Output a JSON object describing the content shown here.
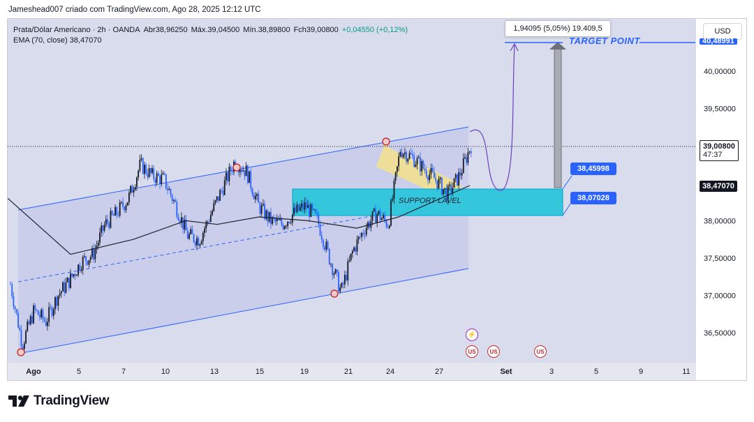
{
  "header": {
    "text": "Jameshead007 criado com TradingView.com, Ago 28, 2025 12:12 UTC"
  },
  "legend": {
    "symbol": "Prata/Dólar Americano · 2h · OANDA",
    "open": "Abr38,96250",
    "high": "Máx.39,04500",
    "low": "Mín.38,89800",
    "close": "Fch39,00800",
    "change": "+0,04550 (+0,12%)",
    "ema": "EMA (70, close)  38,47070"
  },
  "currency": "USD",
  "measure": {
    "text": "1,94095 (5,05%) 19.409,5"
  },
  "annotations": {
    "target_point": "TARGET POINT",
    "support_label": "SUPPORT LAVEL",
    "callout_upper": "38,45998",
    "callout_lower": "38,07028"
  },
  "price_tags": {
    "current": "39,00800",
    "countdown": "47:37",
    "ema": "38,47070",
    "target": "40,48991"
  },
  "events": [
    {
      "icon": "lightning-icon",
      "glyph": "⚡"
    },
    {
      "icon": "us-flag-icon",
      "glyph": "US"
    },
    {
      "icon": "us-flag-icon",
      "glyph": "US"
    },
    {
      "icon": "us-flag-icon",
      "glyph": "US"
    }
  ],
  "footer": {
    "brand": "TradingView"
  },
  "colors": {
    "up": "#089981",
    "candle": "#2962ff",
    "zone": "#00bcd4",
    "flag": "#f5e08c",
    "target": "#2962ff"
  },
  "chart_data": {
    "type": "candlestick",
    "title": "Prata/Dólar Americano · 2h · OANDA",
    "x_ticks": [
      "Ago",
      "5",
      "7",
      "10",
      "13",
      "15",
      "19",
      "21",
      "24",
      "27",
      "Set",
      "3",
      "5",
      "9",
      "11"
    ],
    "y_ticks": [
      "40,00000",
      "39,50000",
      "39,00000",
      "38,50000",
      "38,00000",
      "37,50000",
      "37,00000",
      "36,50000"
    ],
    "y_values": [
      40.0,
      39.5,
      39.0,
      38.5,
      38.0,
      37.5,
      37.0,
      36.5
    ],
    "ylim": [
      36.1,
      40.7
    ],
    "series": [
      {
        "name": "close",
        "points": [
          [
            "Ago",
            37.15
          ],
          [
            "Ago",
            36.35
          ],
          [
            "Ago",
            36.8
          ],
          [
            "Ago",
            36.65
          ],
          [
            "Ago",
            37.0
          ],
          [
            "5",
            37.2
          ],
          [
            "5",
            37.45
          ],
          [
            "5",
            37.55
          ],
          [
            "5",
            37.95
          ],
          [
            "7",
            38.1
          ],
          [
            "7",
            38.3
          ],
          [
            "7",
            38.75
          ],
          [
            "7",
            38.6
          ],
          [
            "10",
            38.55
          ],
          [
            "10",
            38.2
          ],
          [
            "10",
            37.8
          ],
          [
            "10",
            37.75
          ],
          [
            "13",
            38.1
          ],
          [
            "13",
            38.45
          ],
          [
            "13",
            38.8
          ],
          [
            "13",
            38.65
          ],
          [
            "15",
            38.2
          ],
          [
            "15",
            38.0
          ],
          [
            "15",
            37.95
          ],
          [
            "19",
            38.1
          ],
          [
            "19",
            38.2
          ],
          [
            "19",
            38.0
          ],
          [
            "19",
            37.5
          ],
          [
            "21",
            37.05
          ],
          [
            "21",
            37.6
          ],
          [
            "21",
            37.9
          ],
          [
            "21",
            38.1
          ],
          [
            "24",
            37.95
          ],
          [
            "24",
            38.95
          ],
          [
            "24",
            38.85
          ],
          [
            "24",
            38.7
          ],
          [
            "27",
            38.55
          ],
          [
            "27",
            38.35
          ],
          [
            "27",
            38.6
          ],
          [
            "27",
            39.01
          ]
        ]
      },
      {
        "name": "EMA (70, close)",
        "points": [
          [
            "Ago",
            38.3
          ],
          [
            "5",
            37.55
          ],
          [
            "7",
            37.75
          ],
          [
            "10",
            38.0
          ],
          [
            "13",
            37.95
          ],
          [
            "15",
            38.05
          ],
          [
            "19",
            38.0
          ],
          [
            "21",
            37.9
          ],
          [
            "24",
            38.05
          ],
          [
            "27",
            38.47
          ]
        ]
      }
    ],
    "channel": {
      "upper": [
        [
          38.12,
          39.27
        ]
      ],
      "lower": [
        [
          36.35,
          37.35
        ]
      ]
    },
    "support_zone": [
      38.07028,
      38.45998
    ],
    "target": 40.48991,
    "current": 39.008,
    "ema": 38.4707
  }
}
